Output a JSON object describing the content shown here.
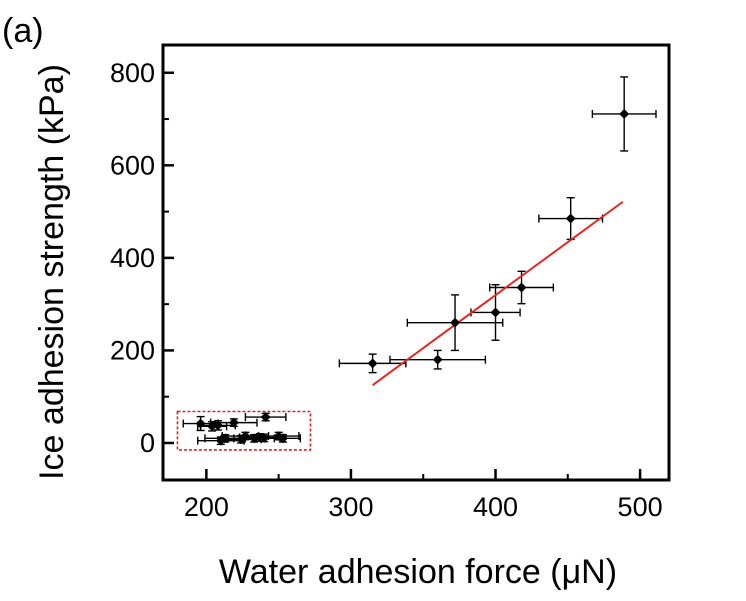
{
  "panel_label": "(a)",
  "chart_data": {
    "type": "scatter",
    "xlabel": "Water adhesion force (μN)",
    "ylabel": "Ice adhesion strength (kPa)",
    "xlim": [
      170,
      520
    ],
    "ylim": [
      -80,
      860
    ],
    "xticks": [
      200,
      300,
      400,
      500
    ],
    "yticks": [
      0,
      200,
      400,
      600,
      800
    ],
    "x_minor_ticks": [
      250,
      350,
      450
    ],
    "y_minor_ticks": [
      100,
      300,
      500,
      700
    ],
    "grid": false,
    "points": [
      {
        "x": 196,
        "y": 42,
        "xerr": 12,
        "yerr": 15
      },
      {
        "x": 204,
        "y": 36,
        "xerr": 10,
        "yerr": 10
      },
      {
        "x": 208,
        "y": 38,
        "xerr": 12,
        "yerr": 10
      },
      {
        "x": 219,
        "y": 44,
        "xerr": 16,
        "yerr": 8
      },
      {
        "x": 241,
        "y": 56,
        "xerr": 14,
        "yerr": 8
      },
      {
        "x": 210,
        "y": 5,
        "xerr": 16,
        "yerr": 8
      },
      {
        "x": 213,
        "y": 10,
        "xerr": 14,
        "yerr": 8
      },
      {
        "x": 224,
        "y": 8,
        "xerr": 14,
        "yerr": 8
      },
      {
        "x": 227,
        "y": 15,
        "xerr": 16,
        "yerr": 8
      },
      {
        "x": 233,
        "y": 10,
        "xerr": 14,
        "yerr": 8
      },
      {
        "x": 237,
        "y": 12,
        "xerr": 14,
        "yerr": 8
      },
      {
        "x": 240,
        "y": 11,
        "xerr": 14,
        "yerr": 8
      },
      {
        "x": 250,
        "y": 15,
        "xerr": 14,
        "yerr": 8
      },
      {
        "x": 253,
        "y": 10,
        "xerr": 12,
        "yerr": 8
      },
      {
        "x": 315,
        "y": 172,
        "xerr": 23,
        "yerr": 20
      },
      {
        "x": 360,
        "y": 180,
        "xerr": 33,
        "yerr": 20
      },
      {
        "x": 372,
        "y": 260,
        "xerr": 33,
        "yerr": 60
      },
      {
        "x": 400,
        "y": 282,
        "xerr": 17,
        "yerr": 60
      },
      {
        "x": 418,
        "y": 336,
        "xerr": 22,
        "yerr": 35
      },
      {
        "x": 452,
        "y": 485,
        "xerr": 22,
        "yerr": 45
      },
      {
        "x": 489,
        "y": 711,
        "xerr": 22,
        "yerr": 80
      }
    ],
    "fit_line": {
      "color": "#e8261f",
      "x": [
        315,
        488
      ],
      "y": [
        125,
        521
      ]
    },
    "annotation_box": {
      "x": [
        180,
        272
      ],
      "y": [
        -15,
        68
      ],
      "color": "#d8232a",
      "style": "dashed"
    }
  }
}
